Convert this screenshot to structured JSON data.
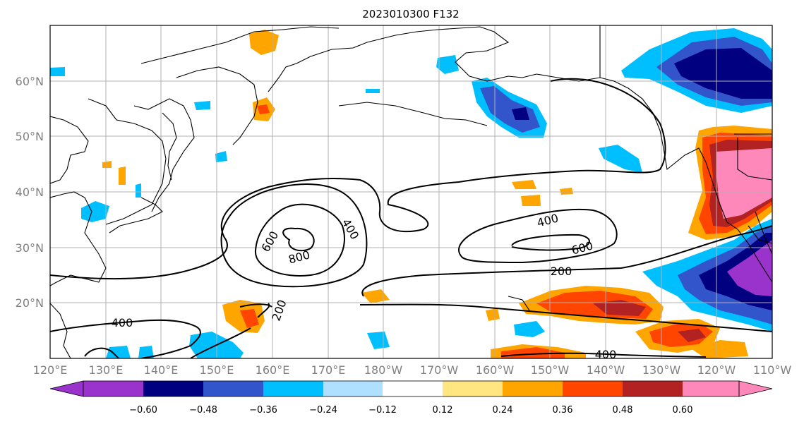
{
  "title": "2023010300 F132",
  "map": {
    "lon_labels": [
      "120°E",
      "130°E",
      "140°E",
      "150°E",
      "160°E",
      "170°E",
      "180°W",
      "170°W",
      "160°W",
      "150°W",
      "140°W",
      "130°W",
      "120°W",
      "110°W"
    ],
    "lat_labels": [
      "20°N",
      "30°N",
      "40°N",
      "50°N",
      "60°N"
    ],
    "contour_labels": [
      "800",
      "600",
      "400",
      "200",
      "400",
      "600",
      "400",
      "200",
      "400"
    ]
  },
  "colorbar": {
    "tick_labels": [
      "−0.60",
      "−0.48",
      "−0.36",
      "−0.24",
      "−0.12",
      "0.12",
      "0.24",
      "0.36",
      "0.48",
      "0.60"
    ],
    "colors": [
      "#9933cc",
      "#000080",
      "#3355cc",
      "#00bfff",
      "#b0e0ff",
      "#ffffff",
      "#ffe680",
      "#ffa500",
      "#ff4500",
      "#b22222",
      "#ff88bb"
    ]
  }
}
